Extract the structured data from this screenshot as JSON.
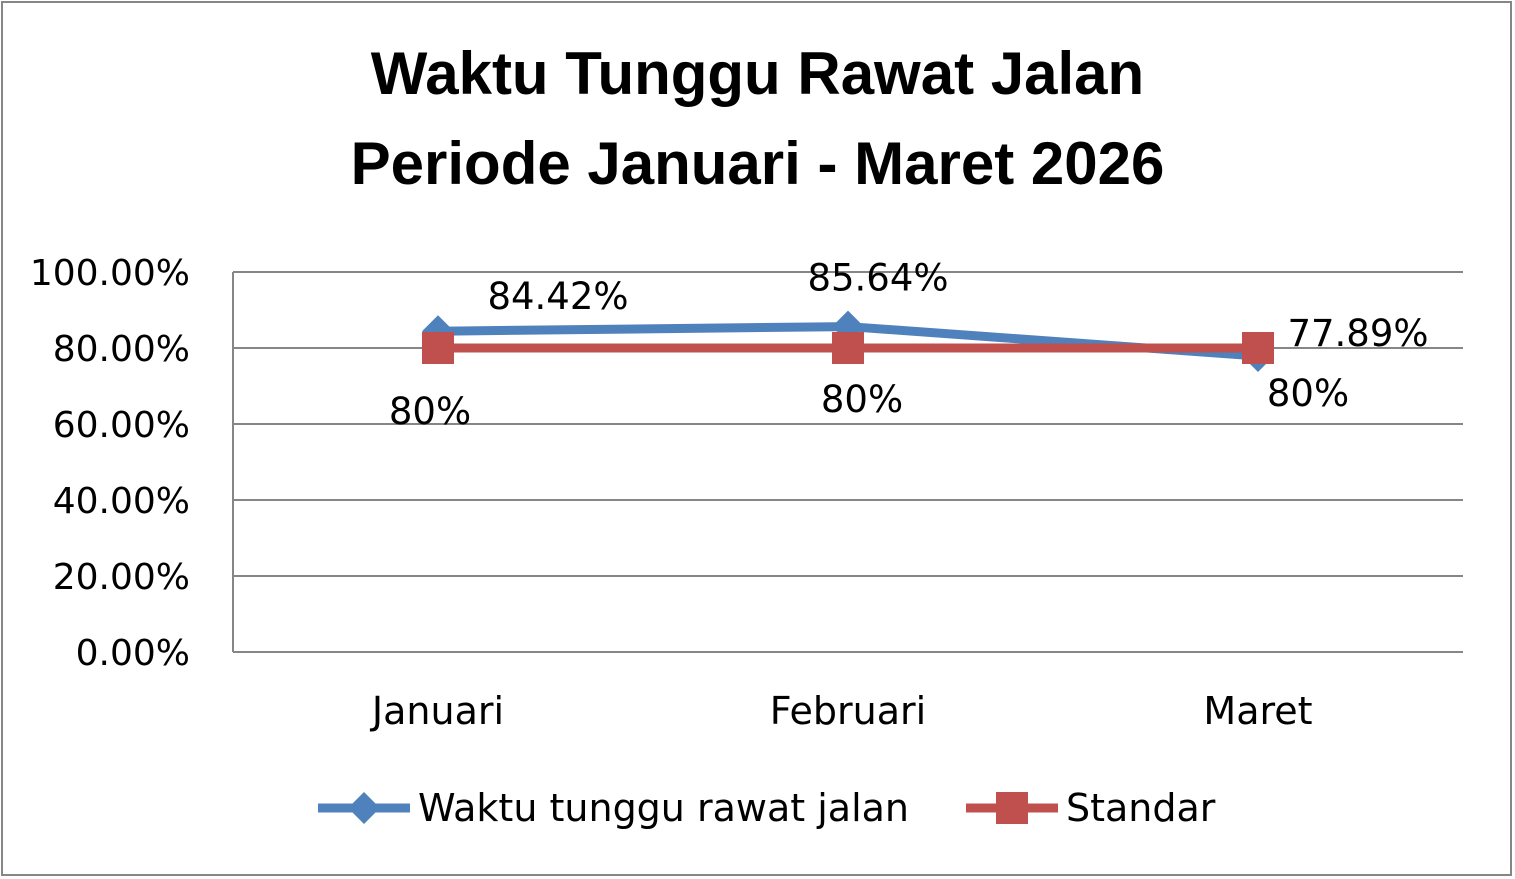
{
  "chart_data": {
    "type": "line",
    "title_lines": [
      "Waktu Tunggu Rawat Jalan",
      "Periode Januari - Maret 2026"
    ],
    "categories": [
      "Januari",
      "Februari",
      "Maret"
    ],
    "y_ticks": [
      "100.00%",
      "80.00%",
      "60.00%",
      "40.00%",
      "20.00%",
      "0.00%"
    ],
    "ylim": [
      0,
      100
    ],
    "grid": true,
    "legend_position": "bottom",
    "series": [
      {
        "name": "Waktu tunggu rawat jalan",
        "values": [
          84.42,
          85.64,
          77.89
        ],
        "labels": [
          "84.42%",
          "85.64%",
          "77.89%"
        ],
        "color": "#4F81BD",
        "marker": "diamond"
      },
      {
        "name": "Standar",
        "values": [
          80,
          80,
          80
        ],
        "labels": [
          "80%",
          "80%",
          "80%"
        ],
        "color": "#C0504D",
        "marker": "square"
      }
    ]
  }
}
